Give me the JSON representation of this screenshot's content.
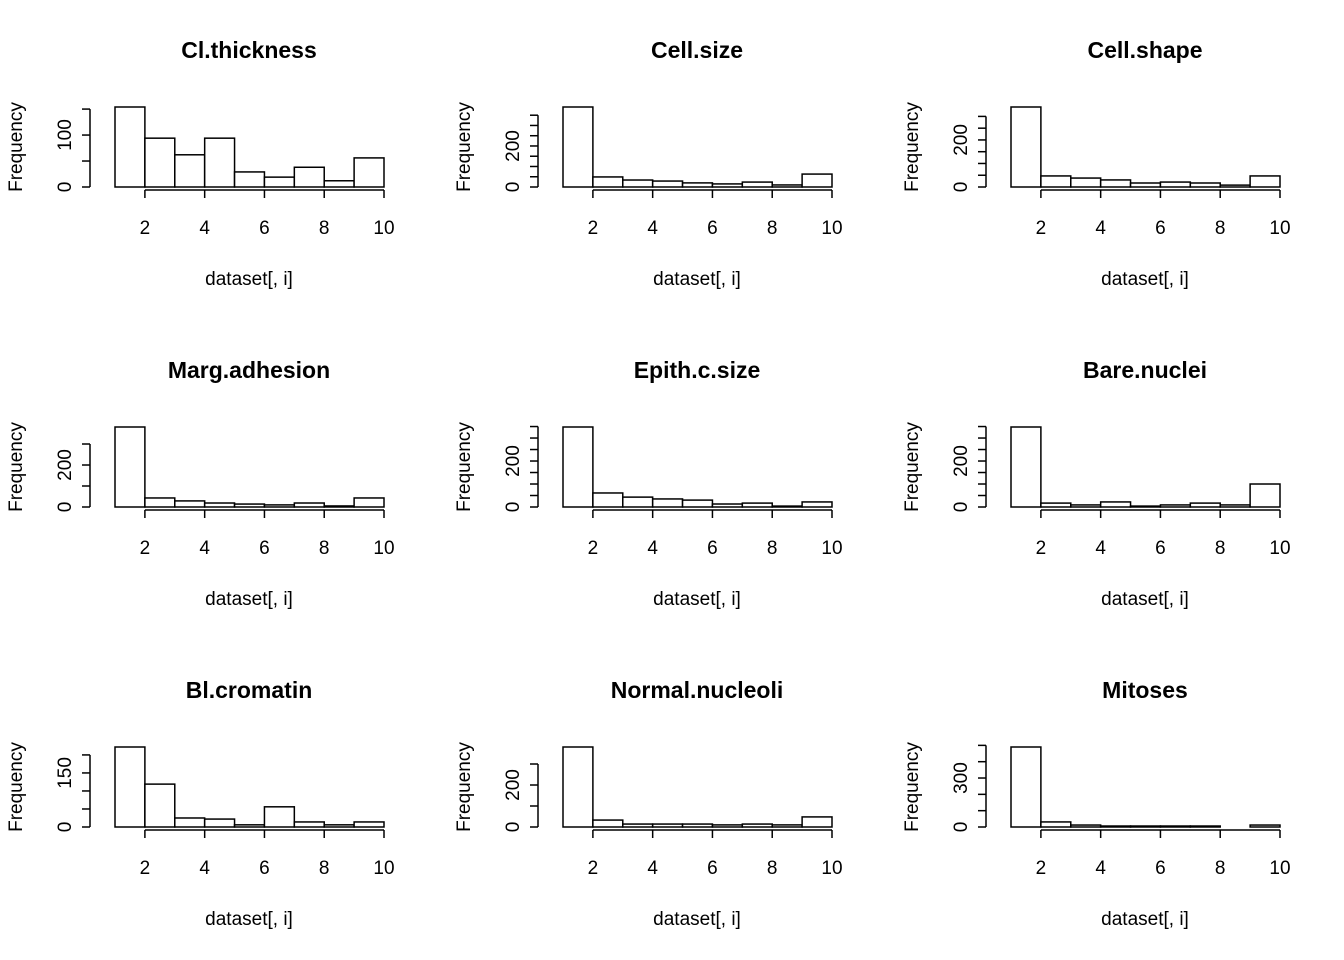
{
  "chart_data": [
    {
      "type": "histogram",
      "title": "Cl.thickness",
      "xlabel": "dataset[, i]",
      "ylabel": "Frequency",
      "bins": [
        1,
        2,
        3,
        4,
        5,
        6,
        7,
        8,
        9,
        10
      ],
      "values": [
        154,
        94,
        62,
        94,
        29,
        19,
        38,
        12,
        56
      ],
      "xlim": [
        1,
        10
      ],
      "xticks": [
        2,
        4,
        6,
        8,
        10
      ],
      "ylim": [
        0,
        154
      ],
      "yticks": [
        0,
        100
      ],
      "minor_yticks": [
        50,
        150
      ]
    },
    {
      "type": "histogram",
      "title": "Cell.size",
      "xlabel": "dataset[, i]",
      "ylabel": "Frequency",
      "bins": [
        1,
        2,
        3,
        4,
        5,
        6,
        7,
        8,
        9,
        10
      ],
      "values": [
        390,
        49,
        34,
        29,
        20,
        15,
        24,
        10,
        63
      ],
      "xlim": [
        1,
        10
      ],
      "xticks": [
        2,
        4,
        6,
        8,
        10
      ],
      "ylim": [
        0,
        390
      ],
      "yticks": [
        0,
        200
      ],
      "minor_yticks": [
        50,
        100,
        150,
        250,
        300,
        350
      ]
    },
    {
      "type": "histogram",
      "title": "Cell.shape",
      "xlabel": "dataset[, i]",
      "ylabel": "Frequency",
      "bins": [
        1,
        2,
        3,
        4,
        5,
        6,
        7,
        8,
        9,
        10
      ],
      "values": [
        340,
        47,
        38,
        30,
        17,
        21,
        17,
        8,
        47
      ],
      "xlim": [
        1,
        10
      ],
      "xticks": [
        2,
        4,
        6,
        8,
        10
      ],
      "ylim": [
        0,
        340
      ],
      "yticks": [
        0,
        200
      ],
      "minor_yticks": [
        50,
        100,
        150,
        250,
        300
      ]
    },
    {
      "type": "histogram",
      "title": "Marg.adhesion",
      "xlabel": "dataset[, i]",
      "ylabel": "Frequency",
      "bins": [
        1,
        2,
        3,
        4,
        5,
        6,
        7,
        8,
        9,
        10
      ],
      "values": [
        381,
        43,
        29,
        19,
        14,
        10,
        19,
        5,
        43
      ],
      "xlim": [
        1,
        10
      ],
      "xticks": [
        2,
        4,
        6,
        8,
        10
      ],
      "ylim": [
        0,
        381
      ],
      "yticks": [
        0,
        200
      ],
      "minor_yticks": [
        100,
        300
      ]
    },
    {
      "type": "histogram",
      "title": "Epith.c.size",
      "xlabel": "dataset[, i]",
      "ylabel": "Frequency",
      "bins": [
        1,
        2,
        3,
        4,
        5,
        6,
        7,
        8,
        9,
        10
      ],
      "values": [
        348,
        61,
        43,
        35,
        30,
        13,
        17,
        4,
        22
      ],
      "xlim": [
        1,
        10
      ],
      "xticks": [
        2,
        4,
        6,
        8,
        10
      ],
      "ylim": [
        0,
        348
      ],
      "yticks": [
        0,
        200
      ],
      "minor_yticks": [
        50,
        100,
        150,
        250,
        300,
        350
      ]
    },
    {
      "type": "histogram",
      "title": "Bare.nuclei",
      "xlabel": "dataset[, i]",
      "ylabel": "Frequency",
      "bins": [
        1,
        2,
        3,
        4,
        5,
        6,
        7,
        8,
        9,
        10
      ],
      "values": [
        348,
        17,
        9,
        22,
        4,
        9,
        17,
        9,
        100
      ],
      "xlim": [
        1,
        10
      ],
      "xticks": [
        2,
        4,
        6,
        8,
        10
      ],
      "ylim": [
        0,
        348
      ],
      "yticks": [
        0,
        200
      ],
      "minor_yticks": [
        50,
        100,
        150,
        250,
        300,
        350
      ]
    },
    {
      "type": "histogram",
      "title": "Bl.cromatin",
      "xlabel": "dataset[, i]",
      "ylabel": "Frequency",
      "bins": [
        1,
        2,
        3,
        4,
        5,
        6,
        7,
        8,
        9,
        10
      ],
      "values": [
        222,
        119,
        25,
        22,
        6,
        56,
        14,
        6,
        14
      ],
      "xlim": [
        1,
        10
      ],
      "xticks": [
        2,
        4,
        6,
        8,
        10
      ],
      "ylim": [
        0,
        222
      ],
      "yticks": [
        0,
        150
      ],
      "minor_yticks": [
        50,
        100,
        200
      ]
    },
    {
      "type": "histogram",
      "title": "Normal.nucleoli",
      "xlabel": "dataset[, i]",
      "ylabel": "Frequency",
      "bins": [
        1,
        2,
        3,
        4,
        5,
        6,
        7,
        8,
        9,
        10
      ],
      "values": [
        381,
        33,
        14,
        14,
        14,
        10,
        14,
        10,
        48
      ],
      "xlim": [
        1,
        10
      ],
      "xticks": [
        2,
        4,
        6,
        8,
        10
      ],
      "ylim": [
        0,
        381
      ],
      "yticks": [
        0,
        200
      ],
      "minor_yticks": [
        100,
        300
      ]
    },
    {
      "type": "histogram",
      "title": "Mitoses",
      "xlabel": "dataset[, i]",
      "ylabel": "Frequency",
      "bins": [
        1,
        2,
        3,
        4,
        5,
        6,
        7,
        8,
        9,
        10
      ],
      "values": [
        490,
        31,
        12,
        6,
        6,
        6,
        6,
        0,
        12
      ],
      "xlim": [
        1,
        10
      ],
      "xticks": [
        2,
        4,
        6,
        8,
        10
      ],
      "ylim": [
        0,
        490
      ],
      "yticks": [
        0,
        300
      ],
      "minor_yticks": [
        100,
        200,
        400,
        500
      ]
    }
  ]
}
